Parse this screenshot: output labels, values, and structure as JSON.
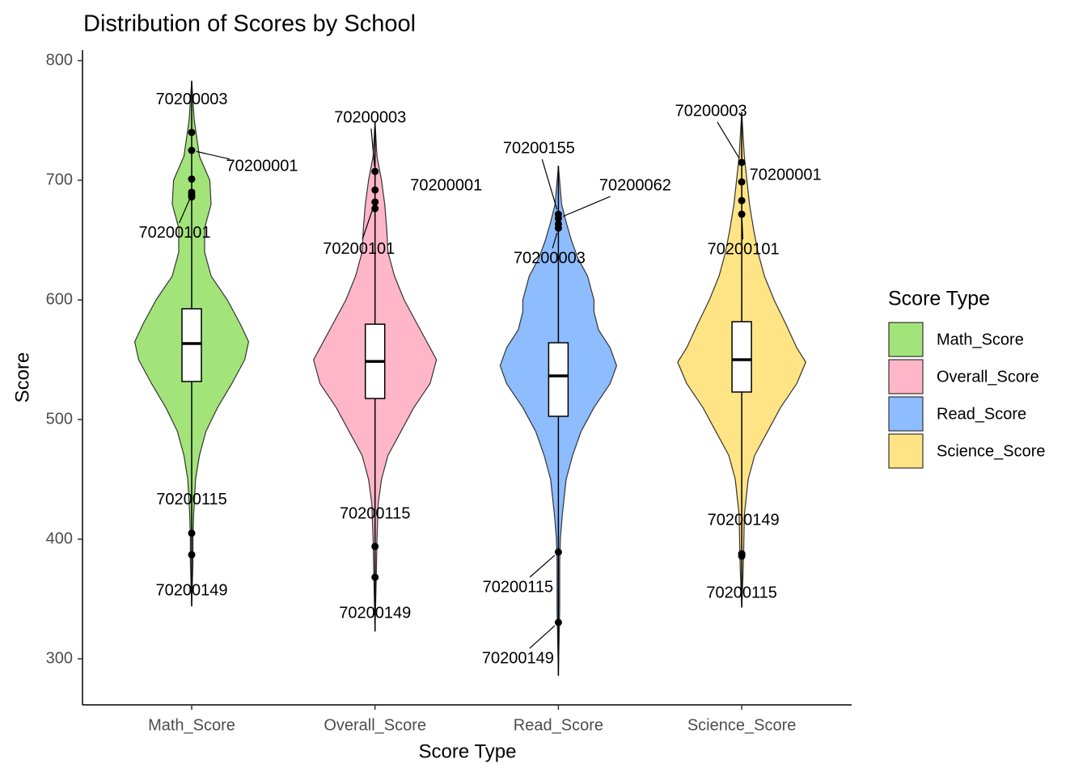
{
  "chart_data": {
    "type": "violin",
    "title": "Distribution of Scores by School",
    "x_label": "Score Type",
    "y_label": "Score",
    "legend_title": "Score Type",
    "legend_position": "right",
    "categories": [
      "Math_Score",
      "Overall_Score",
      "Read_Score",
      "Science_Score"
    ],
    "ylim": [
      261.5,
      808.8
    ],
    "yticks": [
      300,
      400,
      500,
      600,
      700,
      800
    ],
    "series": [
      {
        "name": "Math_Score",
        "color": "#a3e47a",
        "violin": {
          "y": [
            783,
            750,
            720,
            700,
            680,
            660,
            640,
            620,
            600,
            580,
            565,
            550,
            530,
            510,
            490,
            470,
            450,
            420,
            400,
            380,
            344
          ],
          "width": [
            0,
            0.04,
            0.12,
            0.28,
            0.3,
            0.2,
            0.2,
            0.3,
            0.55,
            0.75,
            0.88,
            0.82,
            0.62,
            0.4,
            0.22,
            0.12,
            0.06,
            0.03,
            0.02,
            0.02,
            0
          ]
        },
        "box": {
          "q1": 531.8,
          "median": 563.5,
          "q3": 592.6,
          "whisker_low": 344,
          "whisker_high": 783
        },
        "points": [
          740,
          725,
          701,
          690,
          688,
          686,
          405,
          387
        ],
        "annotations": [
          {
            "label": "70200003",
            "value": 740
          },
          {
            "label": "70200001",
            "value": 725
          },
          {
            "label": "70200101",
            "value": 688
          },
          {
            "label": "70200115",
            "value": 405
          },
          {
            "label": "70200149",
            "value": 387
          }
        ]
      },
      {
        "name": "Overall_Score",
        "color": "#ffb6c8",
        "violin": {
          "y": [
            749,
            720,
            700,
            680,
            660,
            640,
            620,
            600,
            580,
            560,
            550,
            530,
            510,
            490,
            470,
            450,
            430,
            400,
            370,
            323
          ],
          "width": [
            0,
            0.03,
            0.1,
            0.15,
            0.18,
            0.2,
            0.3,
            0.45,
            0.65,
            0.85,
            0.95,
            0.85,
            0.6,
            0.4,
            0.2,
            0.1,
            0.05,
            0.03,
            0.02,
            0
          ]
        },
        "box": {
          "q1": 517.6,
          "median": 548.6,
          "q3": 579.7,
          "whisker_low": 323,
          "whisker_high": 749
        },
        "points": [
          707.4,
          691.9,
          681.8,
          676.4,
          393.9,
          368.2
        ],
        "annotations": [
          {
            "label": "70200003",
            "value": 707.4
          },
          {
            "label": "70200001",
            "value": 691.9
          },
          {
            "label": "70200101",
            "value": 681.8
          },
          {
            "label": "70200115",
            "value": 393.9
          },
          {
            "label": "70200149",
            "value": 368.2
          }
        ]
      },
      {
        "name": "Read_Score",
        "color": "#8dbcff",
        "violin": {
          "y": [
            712,
            680,
            665,
            650,
            635,
            620,
            600,
            590,
            575,
            560,
            545,
            530,
            510,
            490,
            470,
            450,
            420,
            400,
            380,
            340,
            286
          ],
          "width": [
            0,
            0.05,
            0.12,
            0.2,
            0.3,
            0.45,
            0.55,
            0.55,
            0.62,
            0.8,
            0.9,
            0.8,
            0.55,
            0.35,
            0.22,
            0.12,
            0.06,
            0.03,
            0.02,
            0.02,
            0
          ]
        },
        "box": {
          "q1": 502.7,
          "median": 536.5,
          "q3": 564.2,
          "whisker_low": 286,
          "whisker_high": 712
        },
        "points": [
          671.6,
          668.2,
          663.5,
          660,
          389.2,
          330.4
        ],
        "annotations": [
          {
            "label": "70200155",
            "value": 671.6
          },
          {
            "label": "70200062",
            "value": 668.2
          },
          {
            "label": "70200003",
            "value": 660
          },
          {
            "label": "70200115",
            "value": 389.2
          },
          {
            "label": "70200149",
            "value": 330.4
          }
        ]
      },
      {
        "name": "Science_Score",
        "color": "#ffe485",
        "violin": {
          "y": [
            757,
            720,
            700,
            680,
            660,
            640,
            620,
            600,
            580,
            560,
            548,
            530,
            510,
            490,
            470,
            450,
            420,
            390,
            370,
            343
          ],
          "width": [
            0,
            0.04,
            0.08,
            0.12,
            0.18,
            0.25,
            0.35,
            0.5,
            0.68,
            0.85,
            0.99,
            0.85,
            0.6,
            0.4,
            0.2,
            0.1,
            0.04,
            0.03,
            0.02,
            0
          ]
        },
        "box": {
          "q1": 523,
          "median": 550,
          "q3": 581.8,
          "whisker_low": 343,
          "whisker_high": 757
        },
        "points": [
          714.9,
          698.6,
          683,
          671.6,
          387.8,
          385.8
        ],
        "annotations": [
          {
            "label": "70200003",
            "value": 714.9
          },
          {
            "label": "70200001",
            "value": 698.6
          },
          {
            "label": "70200101",
            "value": 671.6
          },
          {
            "label": "70200149",
            "value": 387.8
          },
          {
            "label": "70200115",
            "value": 385.8
          }
        ]
      }
    ]
  }
}
